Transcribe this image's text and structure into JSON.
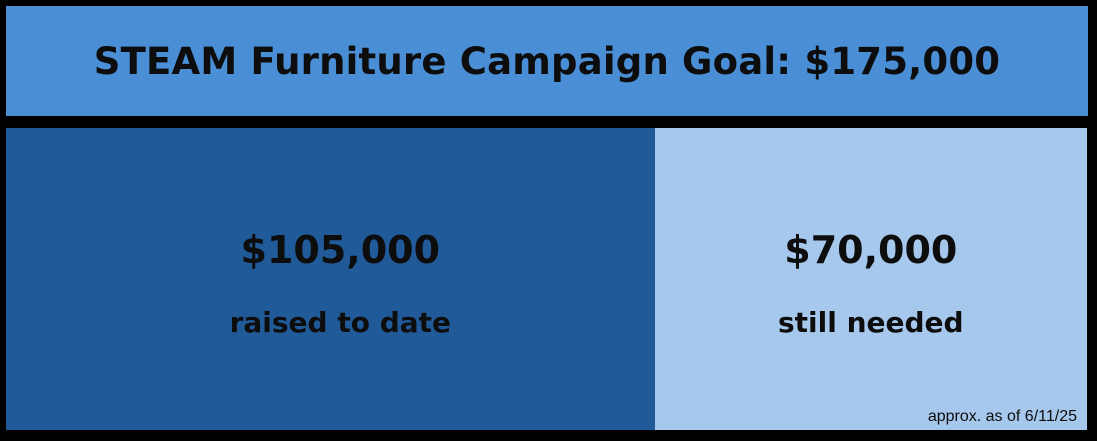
{
  "header": {
    "title": "STEAM Furniture Campaign Goal: $175,000"
  },
  "chart_data": {
    "type": "bar",
    "orientation": "horizontal-stacked",
    "title": "STEAM Furniture Campaign Goal: $175,000",
    "total": 175000,
    "series": [
      {
        "value": 105000,
        "amount_label": "$105,000",
        "label": "raised to date",
        "color": "#215a98"
      },
      {
        "value": 70000,
        "amount_label": "$70,000",
        "label": "still needed",
        "color": "#a6c8ec"
      }
    ],
    "annotation": "approx. as of 6/11/25"
  },
  "colors": {
    "header": "#4a8ed6",
    "border": "#000000",
    "raised": "#215a98",
    "needed": "#a6c8ec"
  }
}
